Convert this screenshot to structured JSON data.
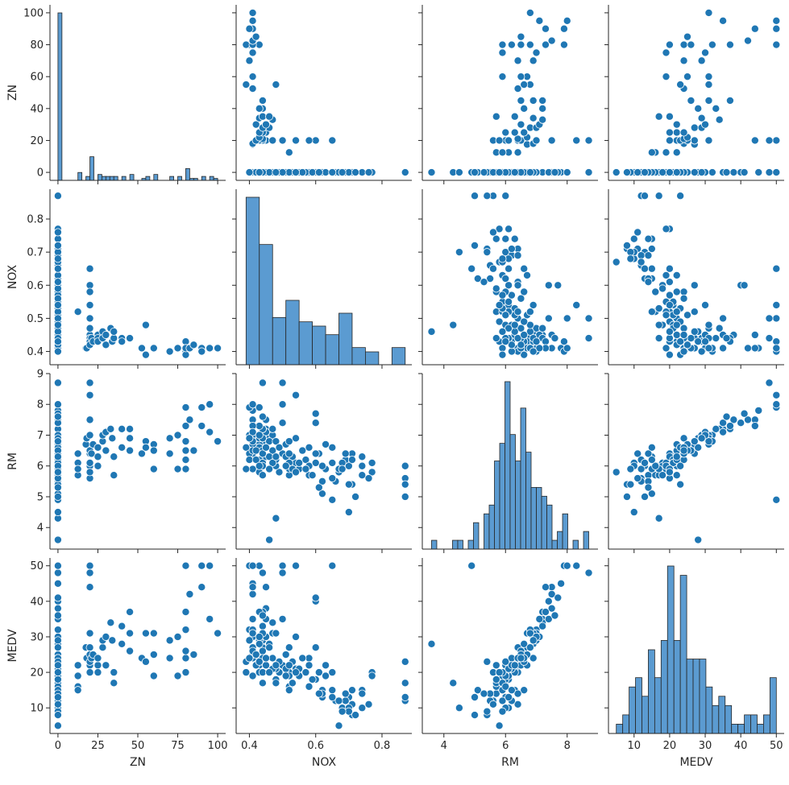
{
  "colors": {
    "point": "#1f77b4",
    "bar": "#5b9bd1",
    "axis": "#262626"
  },
  "variables": [
    "ZN",
    "NOX",
    "RM",
    "MEDV"
  ],
  "chart_data": {
    "type": "scatter",
    "kind": "pairplot",
    "title": "",
    "variables": [
      {
        "name": "ZN",
        "range": [
          -5,
          105
        ],
        "ticks": [
          0,
          25,
          50,
          75,
          100
        ],
        "y_ticks": [
          0,
          20,
          40,
          60,
          80,
          100
        ]
      },
      {
        "name": "NOX",
        "range": [
          0.36,
          0.89
        ],
        "ticks": [
          0.4,
          0.6,
          0.8
        ],
        "y_ticks": [
          0.4,
          0.5,
          0.6,
          0.7,
          0.8
        ]
      },
      {
        "name": "RM",
        "range": [
          3.3,
          9.0
        ],
        "ticks": [
          4,
          6,
          8
        ],
        "y_ticks": [
          4,
          5,
          6,
          7,
          8,
          9
        ]
      },
      {
        "name": "MEDV",
        "range": [
          2.8,
          52.2
        ],
        "ticks": [
          10,
          20,
          30,
          40,
          50
        ],
        "y_ticks": [
          10,
          20,
          30,
          40,
          50
        ]
      }
    ],
    "records": [
      [
        0,
        0.87,
        6.0,
        17
      ],
      [
        0,
        0.87,
        5.6,
        12
      ],
      [
        0,
        0.87,
        5.0,
        13
      ],
      [
        0,
        0.87,
        5.4,
        23
      ],
      [
        0,
        0.77,
        5.8,
        20
      ],
      [
        0,
        0.77,
        6.1,
        19
      ],
      [
        0,
        0.74,
        6.3,
        15
      ],
      [
        0,
        0.74,
        5.7,
        14
      ],
      [
        0,
        0.71,
        6.4,
        11
      ],
      [
        0,
        0.71,
        5.4,
        8
      ],
      [
        0,
        0.7,
        6.0,
        13
      ],
      [
        0,
        0.69,
        6.2,
        12
      ],
      [
        0,
        0.68,
        6.1,
        10
      ],
      [
        0,
        0.67,
        5.8,
        5
      ],
      [
        0,
        0.65,
        6.6,
        15
      ],
      [
        0,
        0.65,
        4.9,
        50
      ],
      [
        0,
        0.63,
        5.9,
        19
      ],
      [
        0,
        0.62,
        6.0,
        13
      ],
      [
        0,
        0.61,
        6.4,
        20
      ],
      [
        0,
        0.6,
        6.1,
        18
      ],
      [
        0,
        0.58,
        5.7,
        22
      ],
      [
        0,
        0.57,
        6.2,
        20
      ],
      [
        0,
        0.55,
        5.9,
        19
      ],
      [
        0,
        0.54,
        6.1,
        21
      ],
      [
        0,
        0.53,
        6.3,
        23
      ],
      [
        0,
        0.52,
        5.9,
        20
      ],
      [
        0,
        0.51,
        6.7,
        25
      ],
      [
        0,
        0.5,
        6.4,
        22
      ],
      [
        0,
        0.49,
        5.8,
        20
      ],
      [
        0,
        0.48,
        6.0,
        18
      ],
      [
        0,
        0.47,
        6.5,
        24
      ],
      [
        0,
        0.46,
        6.9,
        28
      ],
      [
        0,
        0.45,
        7.2,
        35
      ],
      [
        0,
        0.44,
        6.8,
        27
      ],
      [
        0,
        0.43,
        6.2,
        22
      ],
      [
        0,
        0.42,
        6.6,
        25
      ],
      [
        0,
        0.41,
        7.8,
        45
      ],
      [
        0,
        0.4,
        7.0,
        32
      ],
      [
        0,
        0.44,
        8.7,
        48
      ],
      [
        0,
        0.5,
        8.0,
        50
      ],
      [
        0,
        0.6,
        7.4,
        40
      ],
      [
        0,
        0.46,
        3.6,
        28
      ],
      [
        0,
        0.48,
        4.3,
        17
      ],
      [
        0,
        0.62,
        5.1,
        15
      ],
      [
        0,
        0.54,
        6.9,
        30
      ],
      [
        0,
        0.7,
        4.5,
        10
      ],
      [
        0,
        0.58,
        6.6,
        24
      ],
      [
        0,
        0.45,
        7.5,
        38
      ],
      [
        0,
        0.66,
        5.5,
        12
      ],
      [
        0,
        0.51,
        6.3,
        21
      ],
      [
        12.5,
        0.52,
        5.7,
        16
      ],
      [
        12.5,
        0.52,
        6.1,
        19
      ],
      [
        12.5,
        0.52,
        5.9,
        15
      ],
      [
        12.5,
        0.52,
        6.4,
        22
      ],
      [
        17.5,
        0.41,
        6.7,
        27
      ],
      [
        18,
        0.41,
        6.9,
        24
      ],
      [
        20,
        0.65,
        5.6,
        20
      ],
      [
        20,
        0.6,
        6.4,
        27
      ],
      [
        20,
        0.58,
        6.0,
        22
      ],
      [
        20,
        0.54,
        8.3,
        50
      ],
      [
        20,
        0.5,
        8.7,
        48
      ],
      [
        20,
        0.45,
        7.5,
        44
      ],
      [
        20,
        0.44,
        6.1,
        23
      ],
      [
        20,
        0.43,
        5.8,
        20
      ],
      [
        20,
        0.42,
        6.5,
        25
      ],
      [
        20,
        0.47,
        7.0,
        31
      ],
      [
        21,
        0.44,
        6.4,
        24
      ],
      [
        22,
        0.43,
        6.7,
        25
      ],
      [
        25,
        0.45,
        6.3,
        22
      ],
      [
        25,
        0.44,
        6.0,
        20
      ],
      [
        25,
        0.43,
        6.6,
        24
      ],
      [
        28,
        0.46,
        6.8,
        27
      ],
      [
        28,
        0.44,
        7.0,
        29
      ],
      [
        30,
        0.45,
        7.1,
        30
      ],
      [
        30,
        0.42,
        6.5,
        22
      ],
      [
        33,
        0.47,
        7.2,
        34
      ],
      [
        34,
        0.43,
        6.9,
        29
      ],
      [
        35,
        0.44,
        5.7,
        17
      ],
      [
        35,
        0.46,
        6.3,
        20
      ],
      [
        40,
        0.44,
        7.2,
        33
      ],
      [
        40,
        0.43,
        6.6,
        28
      ],
      [
        45,
        0.44,
        7.2,
        37
      ],
      [
        45,
        0.44,
        6.9,
        31
      ],
      [
        45,
        0.44,
        6.5,
        26
      ],
      [
        52.5,
        0.41,
        6.4,
        24
      ],
      [
        55,
        0.48,
        6.8,
        31
      ],
      [
        55,
        0.39,
        6.6,
        23
      ],
      [
        60,
        0.41,
        6.7,
        31
      ],
      [
        60,
        0.41,
        5.9,
        19
      ],
      [
        60,
        0.41,
        6.5,
        25
      ],
      [
        70,
        0.4,
        6.9,
        29
      ],
      [
        70,
        0.4,
        6.4,
        24
      ],
      [
        75,
        0.41,
        7.0,
        30
      ],
      [
        75,
        0.41,
        5.9,
        19
      ],
      [
        80,
        0.43,
        7.9,
        50
      ],
      [
        80,
        0.43,
        7.3,
        37
      ],
      [
        80,
        0.41,
        6.8,
        32
      ],
      [
        80,
        0.4,
        6.2,
        24
      ],
      [
        80,
        0.39,
        5.9,
        20
      ],
      [
        80,
        0.41,
        6.5,
        26
      ],
      [
        82.5,
        0.41,
        7.5,
        42
      ],
      [
        85,
        0.42,
        6.5,
        25
      ],
      [
        90,
        0.41,
        7.3,
        44
      ],
      [
        90,
        0.4,
        7.9,
        50
      ],
      [
        95,
        0.41,
        7.1,
        35
      ],
      [
        95,
        0.41,
        8.0,
        50
      ],
      [
        100,
        0.41,
        6.8,
        31
      ],
      [
        0,
        0.48,
        6.2,
        21
      ],
      [
        0,
        0.53,
        5.9,
        17
      ],
      [
        0,
        0.58,
        6.0,
        16
      ],
      [
        0,
        0.62,
        5.5,
        14
      ],
      [
        0,
        0.67,
        5.9,
        12
      ],
      [
        0,
        0.69,
        6.4,
        14
      ],
      [
        0,
        0.71,
        6.2,
        15
      ],
      [
        0,
        0.74,
        6.0,
        10
      ],
      [
        0,
        0.7,
        5.4,
        9
      ],
      [
        0,
        0.63,
        6.7,
        22
      ],
      [
        0,
        0.6,
        7.7,
        41
      ],
      [
        0,
        0.57,
        5.9,
        20
      ],
      [
        0,
        0.55,
        6.1,
        21
      ],
      [
        0,
        0.51,
        6.0,
        19
      ],
      [
        0,
        0.49,
        6.6,
        23
      ],
      [
        0,
        0.47,
        6.1,
        21
      ],
      [
        0,
        0.44,
        6.4,
        24
      ],
      [
        0,
        0.43,
        7.0,
        30
      ],
      [
        0,
        0.42,
        6.2,
        22
      ],
      [
        0,
        0.4,
        6.9,
        29
      ],
      [
        0,
        0.45,
        6.6,
        24
      ],
      [
        0,
        0.46,
        5.9,
        20
      ],
      [
        0,
        0.52,
        6.8,
        27
      ],
      [
        0,
        0.56,
        6.5,
        24
      ],
      [
        0,
        0.59,
        5.7,
        18
      ],
      [
        0,
        0.61,
        5.3,
        14
      ],
      [
        0,
        0.65,
        6.1,
        13
      ],
      [
        0,
        0.68,
        5.9,
        9
      ],
      [
        0,
        0.72,
        5.0,
        8
      ],
      [
        0,
        0.76,
        5.6,
        11
      ],
      [
        0,
        0.5,
        7.4,
        35
      ],
      [
        0,
        0.44,
        7.6,
        36
      ],
      [
        0,
        0.43,
        6.0,
        23
      ],
      [
        0,
        0.48,
        6.3,
        22
      ],
      [
        0,
        0.54,
        5.8,
        20
      ]
    ]
  }
}
